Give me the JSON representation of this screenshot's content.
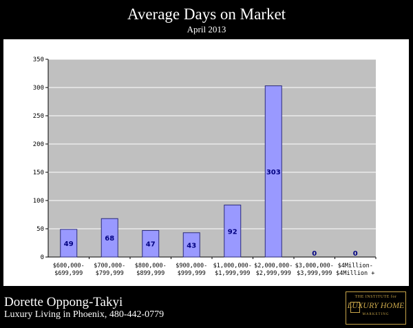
{
  "header": {
    "title": "Average Days on Market",
    "subtitle": "April 2013"
  },
  "footer": {
    "name": "Dorette Oppong-Takyi",
    "tagline": "Luxury Living in Phoenix, 480-442-0779"
  },
  "logo": {
    "line1": "THE INSTITUTE for",
    "line2": "LUXURY HOME",
    "line3": "MARKETING"
  },
  "chart_data": {
    "type": "bar",
    "title": "",
    "xlabel": "",
    "ylabel": "",
    "ylim": [
      0,
      350
    ],
    "yticks": [
      0,
      50,
      100,
      150,
      200,
      250,
      300,
      350
    ],
    "grid": true,
    "categories": [
      [
        "$600,000-",
        "$699,999"
      ],
      [
        "$700,000-",
        "$799,999"
      ],
      [
        "$800,000-",
        "$899,999"
      ],
      [
        "$900,000-",
        "$999,999"
      ],
      [
        "$1,000,000-",
        "$1,999,999"
      ],
      [
        "$2,000,000-",
        "$2,999,999"
      ],
      [
        "$3,000,000-",
        "$3,999,999"
      ],
      [
        "$4Million-",
        "$4Million +"
      ]
    ],
    "values": [
      49,
      68,
      47,
      43,
      92,
      303,
      0,
      0
    ],
    "colors": {
      "bar": "#9999ff",
      "bar_stroke": "#2a2a7a",
      "plot_bg": "#c0c0c0",
      "grid": "#ffffff",
      "label": "#000080"
    }
  }
}
